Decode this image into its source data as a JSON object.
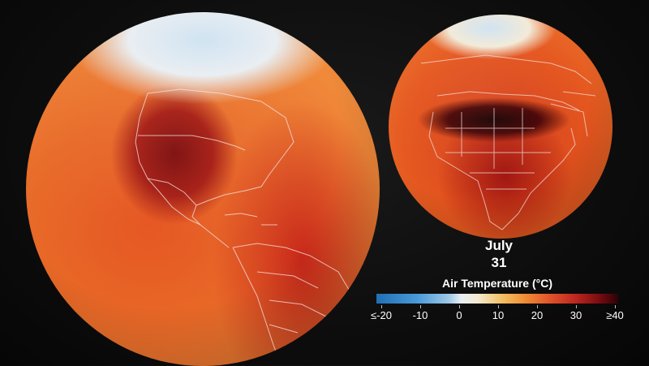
{
  "date": {
    "month": "July",
    "day": "31"
  },
  "legend": {
    "title": "Air Temperature (°C)",
    "tick_labels": [
      "≤-20",
      "-10",
      "0",
      "10",
      "20",
      "30",
      "≥40"
    ]
  },
  "colors": {
    "cold": "#1f6fb5",
    "neutral": "#e8eef2",
    "warm": "#ef8a34",
    "hot": "#c02820",
    "extreme": "#2a0306"
  }
}
